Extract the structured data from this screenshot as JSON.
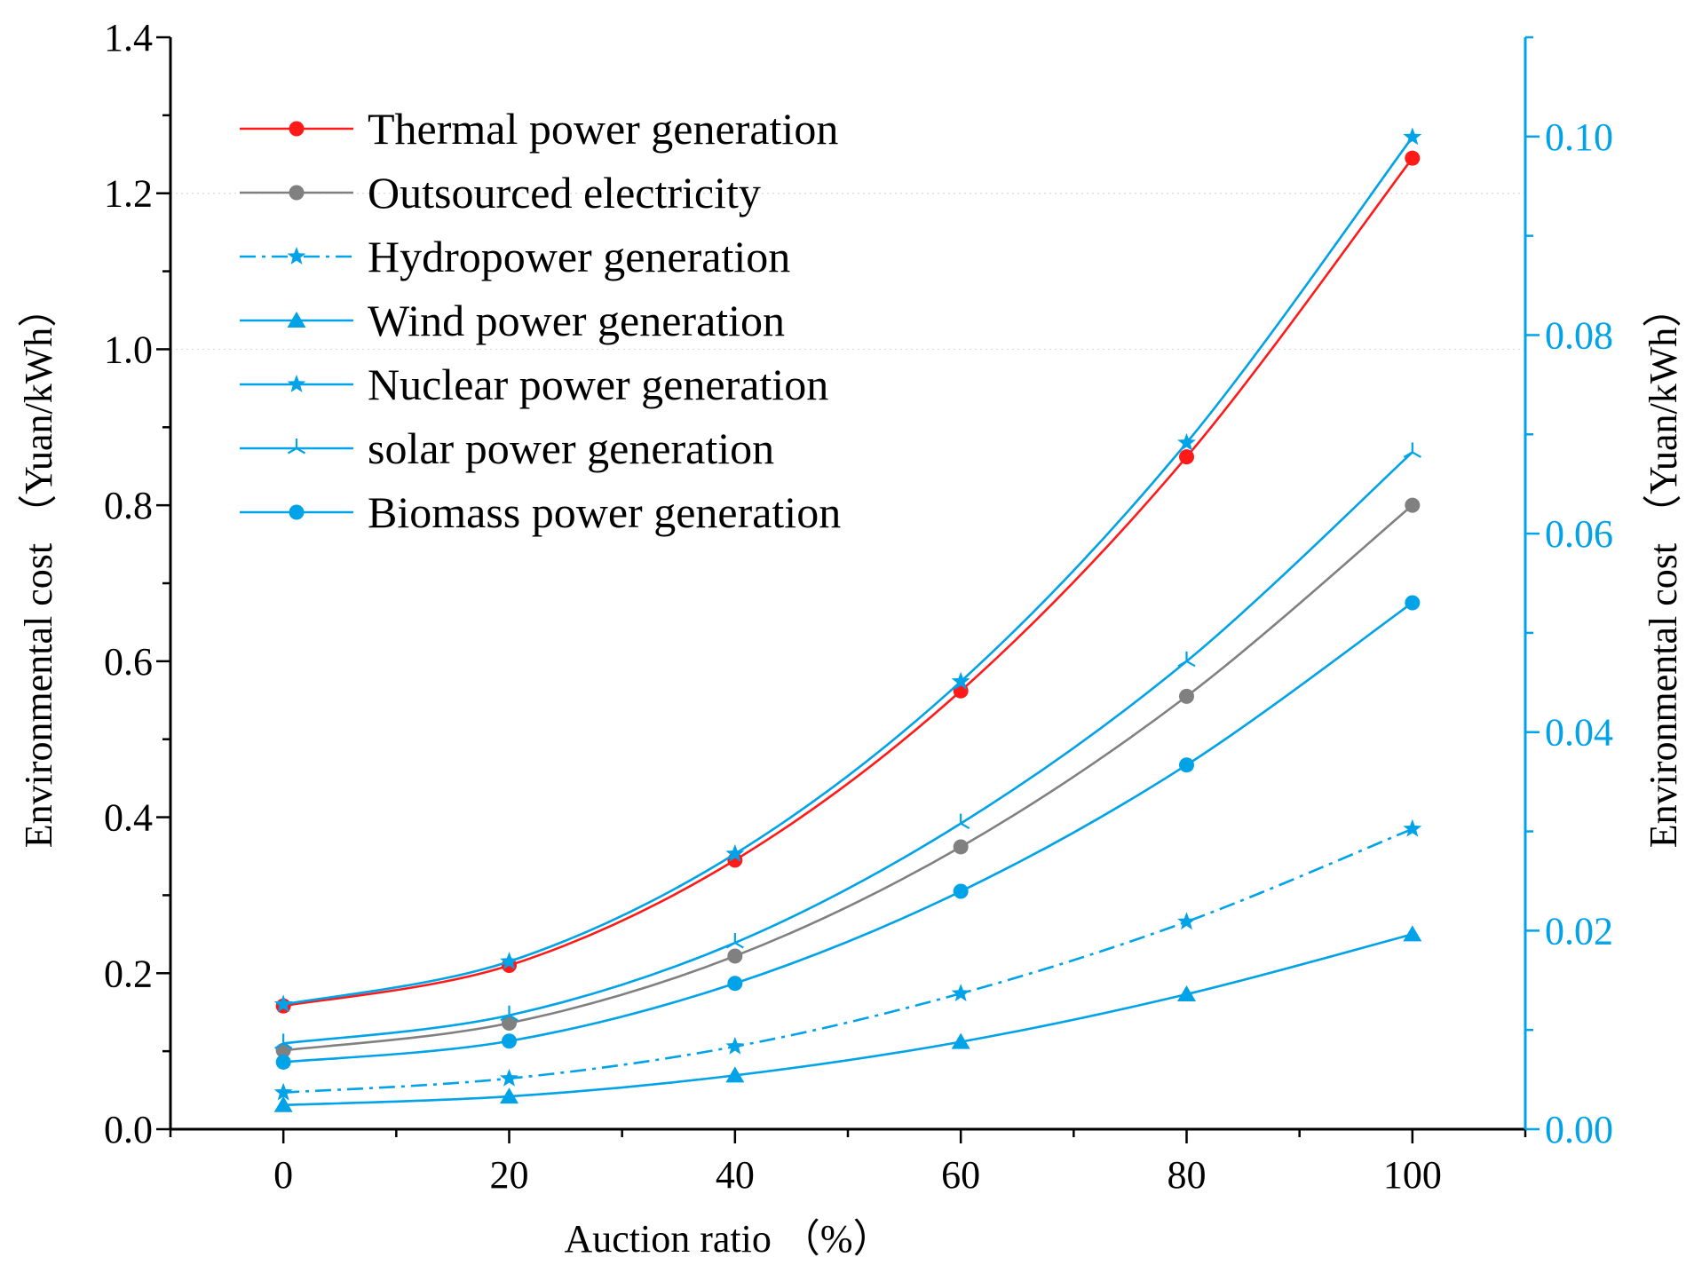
{
  "chart_data": {
    "type": "line",
    "title": "",
    "xlabel": "Auction ratio （%）",
    "ylabel_left": "Environmental cost （Yuan/kWh）",
    "ylabel_right": "Environmental cost （Yuan/kWh）",
    "x": [
      0,
      20,
      40,
      60,
      80,
      100
    ],
    "xlim": [
      -10,
      110
    ],
    "xticks": [
      0,
      20,
      40,
      60,
      80,
      100
    ],
    "xtick_labels": [
      "0",
      "20",
      "40",
      "60",
      "80",
      "100"
    ],
    "ylim_left": [
      0,
      1.4
    ],
    "yticks_left": [
      0.0,
      0.2,
      0.4,
      0.6,
      0.8,
      1.0,
      1.2,
      1.4
    ],
    "ytick_labels_left": [
      "0.0",
      "0.2",
      "0.4",
      "0.6",
      "0.8",
      "1.0",
      "1.2",
      "1.4"
    ],
    "ylim_right": [
      0,
      0.11
    ],
    "yticks_right": [
      0.0,
      0.02,
      0.04,
      0.06,
      0.08,
      0.1
    ],
    "ytick_labels_right": [
      "0.00",
      "0.02",
      "0.04",
      "0.06",
      "0.08",
      "0.10"
    ],
    "gridlines_left": [
      1.0,
      1.2
    ],
    "legend_position": "top-left",
    "series": [
      {
        "name": "Thermal power generation",
        "axis": "left",
        "color": "#ff1a1a",
        "marker": "circle",
        "dash": "solid",
        "values": [
          0.158,
          0.21,
          0.345,
          0.562,
          0.862,
          1.245
        ]
      },
      {
        "name": "Outsourced electricity",
        "axis": "left",
        "color": "#808080",
        "marker": "circle",
        "dash": "solid",
        "values": [
          0.101,
          0.136,
          0.222,
          0.362,
          0.555,
          0.8
        ]
      },
      {
        "name": "Hydropower generation",
        "axis": "left",
        "color": "#00a2e8",
        "marker": "star",
        "dash": "dashdot",
        "values": [
          0.047,
          0.065,
          0.106,
          0.174,
          0.266,
          0.385
        ]
      },
      {
        "name": "Wind power generation",
        "axis": "left",
        "color": "#00a2e8",
        "marker": "triangle",
        "dash": "solid",
        "values": [
          0.031,
          0.042,
          0.069,
          0.112,
          0.173,
          0.25
        ]
      },
      {
        "name": "Nuclear power generation",
        "axis": "left",
        "color": "#00a2e8",
        "marker": "star",
        "dash": "solid",
        "values": [
          0.16,
          0.215,
          0.353,
          0.574,
          0.88,
          1.272
        ]
      },
      {
        "name": "solar power generation",
        "axis": "left",
        "color": "#00a2e8",
        "marker": "asterisk",
        "dash": "solid",
        "values": [
          0.11,
          0.146,
          0.239,
          0.392,
          0.6,
          0.868
        ]
      },
      {
        "name": "Biomass power generation",
        "axis": "left",
        "color": "#00a2e8",
        "marker": "circle",
        "dash": "solid",
        "values": [
          0.086,
          0.113,
          0.187,
          0.305,
          0.467,
          0.675
        ]
      }
    ],
    "colors": {
      "axis": "#000000",
      "right_axis": "#00a2e8",
      "grid": "#d9d9d9"
    }
  }
}
